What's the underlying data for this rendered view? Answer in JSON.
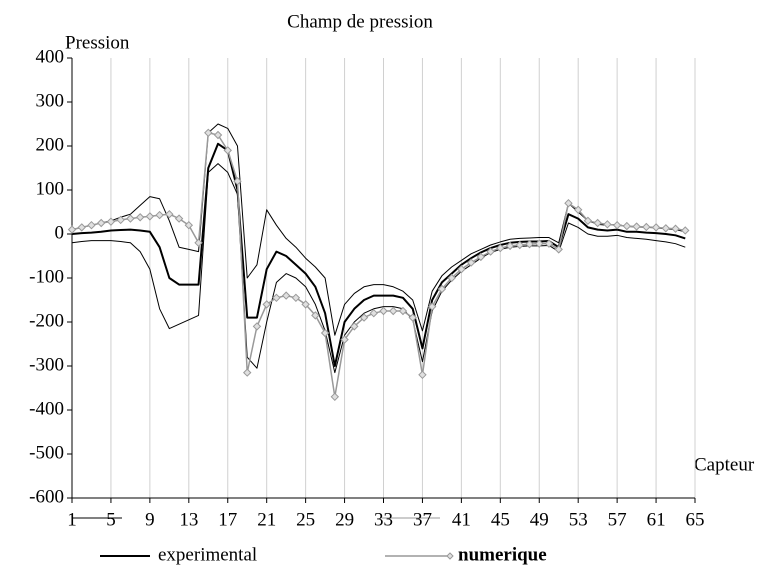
{
  "chart_data": {
    "type": "line",
    "title": "Champ de pression",
    "y_label": "Pression",
    "x_label": "Capteur",
    "x": [
      1,
      2,
      3,
      4,
      5,
      6,
      7,
      8,
      9,
      10,
      11,
      12,
      13,
      14,
      15,
      16,
      17,
      18,
      19,
      20,
      21,
      22,
      23,
      24,
      25,
      26,
      27,
      28,
      29,
      30,
      31,
      32,
      33,
      34,
      35,
      36,
      37,
      38,
      39,
      40,
      41,
      42,
      43,
      44,
      45,
      46,
      47,
      48,
      49,
      50,
      51,
      52,
      53,
      54,
      55,
      56,
      57,
      58,
      59,
      60,
      61,
      62,
      63,
      64
    ],
    "xlim": [
      1,
      65
    ],
    "xticks": [
      1,
      5,
      9,
      13,
      17,
      21,
      25,
      29,
      33,
      37,
      41,
      45,
      49,
      53,
      57,
      61,
      65
    ],
    "ylim": [
      -600,
      400
    ],
    "yticks": [
      -600,
      -500,
      -400,
      -300,
      -200,
      -100,
      0,
      100,
      200,
      300,
      400
    ],
    "grid": "x",
    "series": [
      {
        "name": "experimental",
        "color": "#000000",
        "width": 2,
        "legend": true,
        "values": [
          0,
          2,
          3,
          5,
          8,
          9,
          10,
          8,
          5,
          -30,
          -100,
          -115,
          -115,
          -115,
          150,
          205,
          190,
          100,
          -190,
          -190,
          -80,
          -40,
          -50,
          -70,
          -90,
          -120,
          -180,
          -300,
          -200,
          -170,
          -150,
          -140,
          -140,
          -140,
          -145,
          -170,
          -260,
          -150,
          -110,
          -90,
          -70,
          -55,
          -42,
          -32,
          -25,
          -20,
          -18,
          -17,
          -17,
          -16,
          -30,
          45,
          35,
          15,
          10,
          8,
          10,
          5,
          5,
          3,
          2,
          0,
          -3,
          -10
        ]
      },
      {
        "color": "#000000",
        "width": 1,
        "values": [
          10,
          15,
          20,
          25,
          30,
          38,
          45,
          65,
          85,
          80,
          30,
          -30,
          -35,
          -40,
          230,
          250,
          240,
          200,
          -100,
          -70,
          55,
          20,
          -10,
          -30,
          -55,
          -75,
          -100,
          -230,
          -160,
          -135,
          -120,
          -115,
          -115,
          -120,
          -130,
          -150,
          -220,
          -130,
          -95,
          -75,
          -60,
          -45,
          -35,
          -25,
          -18,
          -12,
          -10,
          -9,
          -8,
          -8,
          -20,
          70,
          50,
          30,
          22,
          20,
          22,
          17,
          16,
          15,
          14,
          12,
          10,
          5
        ]
      },
      {
        "color": "#000000",
        "width": 1,
        "values": [
          -20,
          -17,
          -15,
          -15,
          -15,
          -17,
          -20,
          -40,
          -80,
          -170,
          -215,
          -205,
          -195,
          -185,
          140,
          160,
          140,
          90,
          -280,
          -305,
          -200,
          -110,
          -90,
          -100,
          -120,
          -160,
          -220,
          -315,
          -230,
          -200,
          -180,
          -170,
          -165,
          -165,
          -170,
          -195,
          -290,
          -175,
          -130,
          -105,
          -85,
          -70,
          -55,
          -42,
          -35,
          -30,
          -28,
          -27,
          -27,
          -26,
          -40,
          25,
          15,
          0,
          -5,
          -5,
          -3,
          -8,
          -10,
          -12,
          -15,
          -18,
          -22,
          -30
        ]
      },
      {
        "name": "numerique",
        "color": "#999999",
        "width": 1.5,
        "marker": "diamond",
        "legend": true,
        "values": [
          10,
          15,
          20,
          25,
          28,
          32,
          35,
          38,
          40,
          43,
          45,
          35,
          20,
          -20,
          230,
          225,
          190,
          120,
          -315,
          -210,
          -160,
          -145,
          -140,
          -145,
          -160,
          -185,
          -225,
          -370,
          -240,
          -210,
          -190,
          -180,
          -175,
          -175,
          -175,
          -190,
          -320,
          -165,
          -125,
          -100,
          -80,
          -65,
          -52,
          -40,
          -32,
          -27,
          -25,
          -23,
          -22,
          -22,
          -35,
          70,
          55,
          30,
          25,
          22,
          20,
          18,
          17,
          16,
          15,
          13,
          12,
          8
        ]
      }
    ]
  }
}
